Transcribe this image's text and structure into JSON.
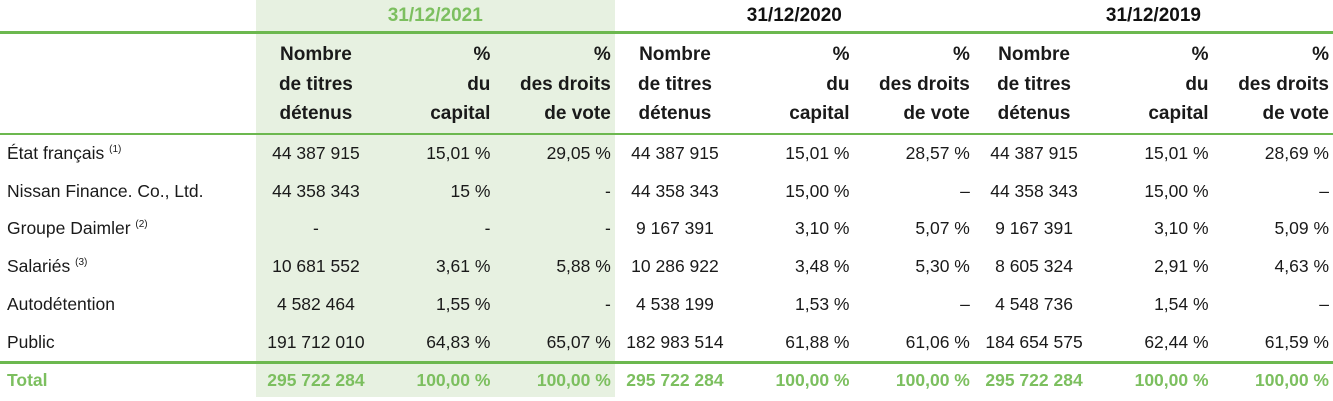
{
  "years": [
    "31/12/2021",
    "31/12/2020",
    "31/12/2019"
  ],
  "columns": {
    "shares": [
      "Nombre",
      "de titres",
      "détenus"
    ],
    "capital": [
      "%",
      "du",
      "capital"
    ],
    "votes": [
      "%",
      "des droits",
      "de vote"
    ]
  },
  "rows": [
    {
      "label": "État français",
      "note": "(1)",
      "values": [
        "44 387 915",
        "15,01 %",
        "29,05 %",
        "44 387 915",
        "15,01 %",
        "28,57 %",
        "44 387 915",
        "15,01 %",
        "28,69 %"
      ]
    },
    {
      "label": "Nissan Finance. Co., Ltd.",
      "note": "",
      "values": [
        "44 358 343",
        "15 %",
        "-",
        "44 358 343",
        "15,00 %",
        "–",
        "44 358 343",
        "15,00 %",
        "–"
      ]
    },
    {
      "label": "Groupe Daimler",
      "note": "(2)",
      "values": [
        "-",
        "-",
        "-",
        "9 167 391",
        "3,10 %",
        "5,07 %",
        "9 167 391",
        "3,10 %",
        "5,09 %"
      ]
    },
    {
      "label": "Salariés",
      "note": "(3)",
      "values": [
        "10 681 552",
        "3,61 %",
        "5,88 %",
        "10 286 922",
        "3,48 %",
        "5,30 %",
        "8 605 324",
        "2,91 %",
        "4,63 %"
      ]
    },
    {
      "label": "Autodétention",
      "note": "",
      "values": [
        "4 582 464",
        "1,55 %",
        "-",
        "4 538 199",
        "1,53 %",
        "–",
        "4 548 736",
        "1,54 %",
        "–"
      ]
    },
    {
      "label": "Public",
      "note": "",
      "values": [
        "191 712 010",
        "64,83 %",
        "65,07 %",
        "182 983 514",
        "61,88 %",
        "61,06 %",
        "184 654 575",
        "62,44 %",
        "61,59 %"
      ]
    }
  ],
  "total": {
    "label": "Total",
    "values": [
      "295 722 284",
      "100,00 %",
      "100,00 %",
      "295 722 284",
      "100,00 %",
      "100,00 %",
      "295 722 284",
      "100,00 %",
      "100,00 %"
    ]
  },
  "colors": {
    "accent": "#7cbf5f",
    "rule": "#6cb84f",
    "highlight": "#e7f1e1"
  }
}
